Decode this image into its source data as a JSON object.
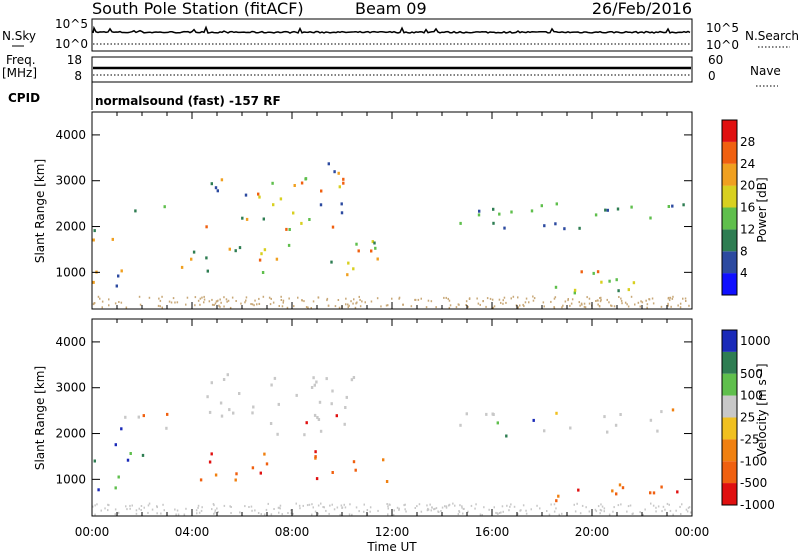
{
  "header": {
    "station": "South Pole Station (fitACF)",
    "beam": "Beam 09",
    "date": "26/Feb/2016"
  },
  "nsky_panel": {
    "left_label": "N.Sky",
    "right_label": "N.Search",
    "left_ticks": [
      "10^5",
      "10^0"
    ],
    "right_ticks": [
      "10^5",
      "10^0"
    ]
  },
  "freq_panel": {
    "left_label": "Freq.",
    "left_unit": "[MHz]",
    "right_label": "Nave",
    "left_ticks": [
      "18",
      "8"
    ],
    "right_ticks": [
      "60",
      "0"
    ]
  },
  "cpid": {
    "label": "CPID",
    "text": "normalsound (fast) -157 RF"
  },
  "chart_data": [
    {
      "type": "heatmap",
      "name": "power",
      "ylabel": "Slant Range [km]",
      "xlabel": "",
      "yticks": [
        "1000",
        "2000",
        "3000",
        "4000"
      ],
      "ylim": [
        200,
        4500
      ],
      "colorbar": {
        "label": "Power [dB]",
        "ticks": [
          "4",
          "8",
          "12",
          "16",
          "20",
          "24",
          "28"
        ],
        "colors": [
          "#1010ff",
          "#2c4aa0",
          "#2e7d52",
          "#5fbf4c",
          "#d8d020",
          "#f0a020",
          "#f06010",
          "#e01010"
        ]
      },
      "regions": [
        {
          "t": [
            0.0,
            1.5
          ],
          "r": [
            600,
            1900
          ],
          "level": "mixed"
        },
        {
          "t": [
            1.0,
            3.0
          ],
          "r": [
            2100,
            2400
          ],
          "level": "low"
        },
        {
          "t": [
            3.5,
            11.5
          ],
          "r": [
            900,
            1700
          ],
          "level": "high"
        },
        {
          "t": [
            4.5,
            10.5
          ],
          "r": [
            1900,
            3400
          ],
          "level": "mixed"
        },
        {
          "t": [
            14.5,
            24.0
          ],
          "r": [
            1900,
            2500
          ],
          "level": "low"
        },
        {
          "t": [
            18.0,
            22.0
          ],
          "r": [
            500,
            1100
          ],
          "level": "high"
        }
      ]
    },
    {
      "type": "heatmap",
      "name": "velocity",
      "ylabel": "Slant Range [km]",
      "xlabel": "Time UT",
      "xticks": [
        "00:00",
        "04:00",
        "08:00",
        "12:00",
        "16:00",
        "20:00",
        "00:00"
      ],
      "yticks": [
        "1000",
        "2000",
        "3000",
        "4000"
      ],
      "ylim": [
        200,
        4500
      ],
      "colorbar": {
        "label": "Velocity [m s⁻¹]",
        "ticks": [
          "1000",
          "500",
          "100",
          "25",
          "-25",
          "-100",
          "-500",
          "-1000"
        ],
        "colors": [
          "#1a2ab8",
          "#2e7d52",
          "#5fbf4c",
          "#c8c8c8",
          "#f0c020",
          "#f08010",
          "#f06010",
          "#e01010"
        ]
      },
      "regions": [
        {
          "t": [
            0.0,
            2.0
          ],
          "r": [
            700,
            1800
          ],
          "level": "positive"
        },
        {
          "t": [
            1.0,
            3.5
          ],
          "r": [
            2000,
            2500
          ],
          "level": "ground"
        },
        {
          "t": [
            4.5,
            10.5
          ],
          "r": [
            1900,
            3300
          ],
          "level": "ground"
        },
        {
          "t": [
            4.0,
            12.0
          ],
          "r": [
            900,
            1600
          ],
          "level": "negative"
        },
        {
          "t": [
            14.5,
            24.0
          ],
          "r": [
            1900,
            2500
          ],
          "level": "ground"
        },
        {
          "t": [
            18.0,
            23.5
          ],
          "r": [
            500,
            1000
          ],
          "level": "negative"
        }
      ]
    }
  ]
}
